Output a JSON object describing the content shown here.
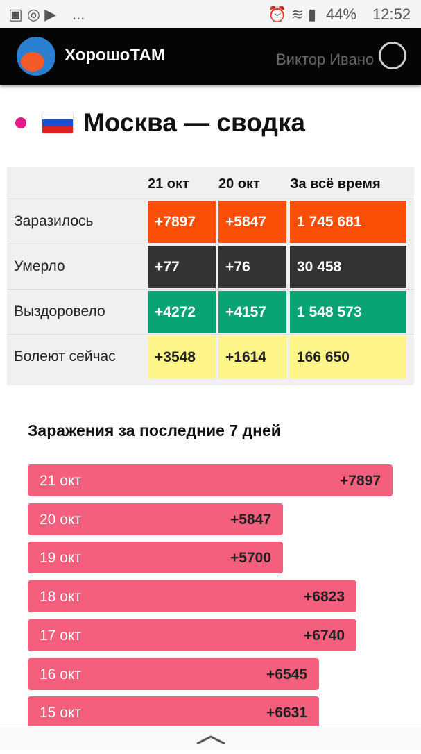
{
  "status_bar": {
    "more": "...",
    "battery": "44%",
    "time": "12:52"
  },
  "header": {
    "app_name": "ХорошоТАМ",
    "user": "Виктор Ивано"
  },
  "title": "Москва — сводка",
  "table": {
    "columns": [
      "21 окт",
      "20 окт",
      "За всё время"
    ],
    "rows": [
      {
        "label": "Заразилось",
        "cells": [
          "+7897",
          "+5847",
          "1 745 681"
        ]
      },
      {
        "label": "Умерло",
        "cells": [
          "+77",
          "+76",
          "30 458"
        ]
      },
      {
        "label": "Выздоровело",
        "cells": [
          "+4272",
          "+4157",
          "1 548 573"
        ]
      },
      {
        "label": "Болеют сейчас",
        "cells": [
          "+3548",
          "+1614",
          "166 650"
        ]
      }
    ]
  },
  "chart": {
    "title": "Заражения за последние 7 дней",
    "bars": [
      {
        "label": "21 окт",
        "value": "+7897"
      },
      {
        "label": "20 окт",
        "value": "+5847"
      },
      {
        "label": "19 окт",
        "value": "+5700"
      },
      {
        "label": "18 окт",
        "value": "+6823"
      },
      {
        "label": "17 окт",
        "value": "+6740"
      },
      {
        "label": "16 окт",
        "value": "+6545"
      },
      {
        "label": "15 окт",
        "value": "+6631"
      }
    ]
  }
}
